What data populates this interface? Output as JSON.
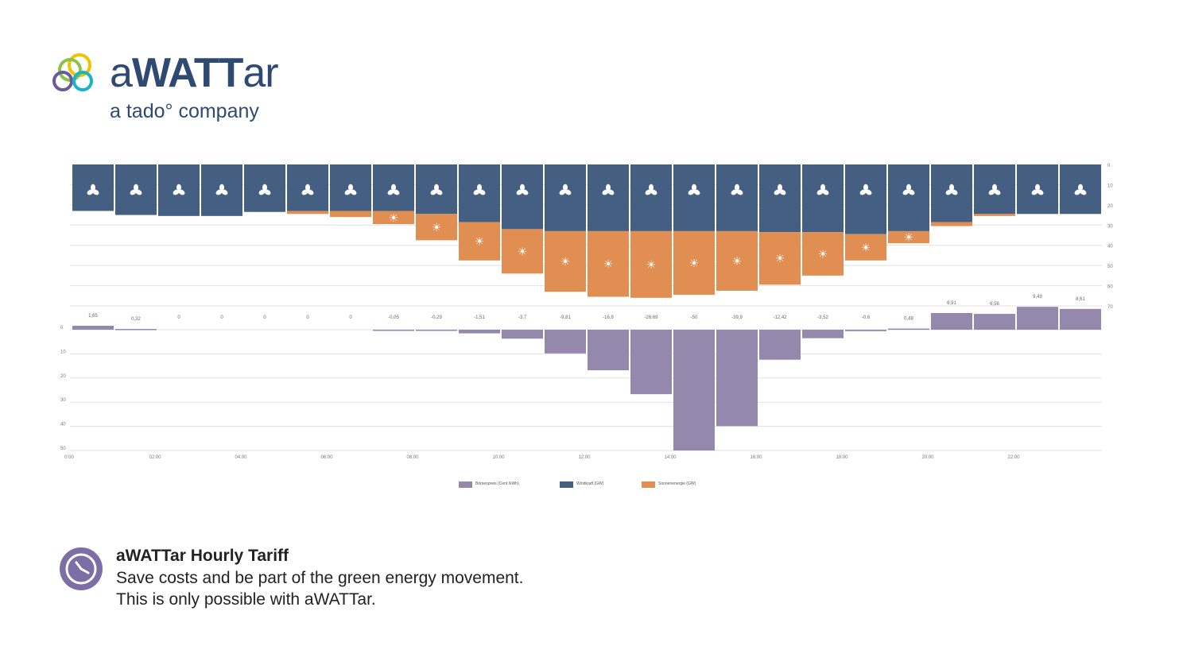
{
  "brand": {
    "name_prefix": "a",
    "name_bold": "WATT",
    "name_suffix": "ar",
    "tagline": "a tado° company"
  },
  "footer": {
    "title": "aWATTar Hourly Tariff",
    "line1": "Save costs and be part of the green energy movement.",
    "line2": "This is only possible with aWATTar.",
    "icon": "clock-icon"
  },
  "colors": {
    "wind": "#455f82",
    "solar": "#e08e52",
    "price": "#9488ad",
    "brand": "#2e4a73",
    "grid": "#e0e0e0"
  },
  "chart_data": {
    "type": "bar",
    "hours": [
      "0:00",
      "1:00",
      "2:00",
      "3:00",
      "4:00",
      "5:00",
      "6:00",
      "7:00",
      "8:00",
      "9:00",
      "10:00",
      "11:00",
      "12:00",
      "13:00",
      "14:00",
      "15:00",
      "16:00",
      "17:00",
      "18:00",
      "19:00",
      "20:00",
      "21:00",
      "22:00",
      "23:00"
    ],
    "x_tick_labels": [
      "0:00",
      "02:00",
      "04:00",
      "06:00",
      "08:00",
      "10:00",
      "12:00",
      "14:00",
      "16:00",
      "18:00",
      "20:00",
      "22:00"
    ],
    "price_labels": [
      "1,65",
      "0,32",
      "0",
      "0",
      "0",
      "0",
      "0",
      "-0,05",
      "-0,29",
      "-1,51",
      "-3,7",
      "-9,81",
      "-16,8",
      "-26,69",
      "-50",
      "-39,9",
      "-12,42",
      "-3,52",
      "-0,6",
      "0,48",
      "6,91",
      "6,56",
      "9,49",
      "8,61"
    ],
    "series": [
      {
        "name": "Börsenpreis (Cent /kWh)",
        "key": "price",
        "values": [
          1.65,
          0.32,
          0,
          0,
          0,
          0,
          0,
          -0.05,
          -0.29,
          -1.51,
          -3.7,
          -9.81,
          -16.8,
          -26.69,
          -50,
          -39.9,
          -12.42,
          -3.52,
          -0.6,
          0.48,
          6.91,
          6.56,
          9.49,
          8.61
        ]
      },
      {
        "name": "Windkraft (GW)",
        "key": "wind",
        "values": [
          23,
          25,
          25.5,
          25.5,
          23.5,
          23,
          23,
          23,
          24.5,
          28.5,
          32,
          33,
          33,
          33,
          33,
          33,
          33.5,
          33.5,
          34.5,
          33,
          28.5,
          24.5,
          24.5,
          24.5
        ]
      },
      {
        "name": "Sonnenenergie (GW)",
        "key": "solar",
        "values": [
          0,
          0,
          0,
          0,
          0,
          1.5,
          3,
          6.5,
          13,
          19,
          22,
          30,
          32.5,
          33,
          31.5,
          29.5,
          26,
          21.5,
          13,
          6,
          2,
          1,
          0,
          0
        ]
      }
    ],
    "upper_axis": {
      "range": [
        0,
        70
      ],
      "ticks": [
        "0",
        "10",
        "20",
        "30",
        "40",
        "50",
        "60",
        "70"
      ]
    },
    "lower_axis": {
      "range": [
        0,
        50
      ],
      "ticks": [
        "0",
        "10",
        "20",
        "30",
        "40",
        "50"
      ]
    },
    "legend": {
      "placement": "bottom-center"
    }
  }
}
